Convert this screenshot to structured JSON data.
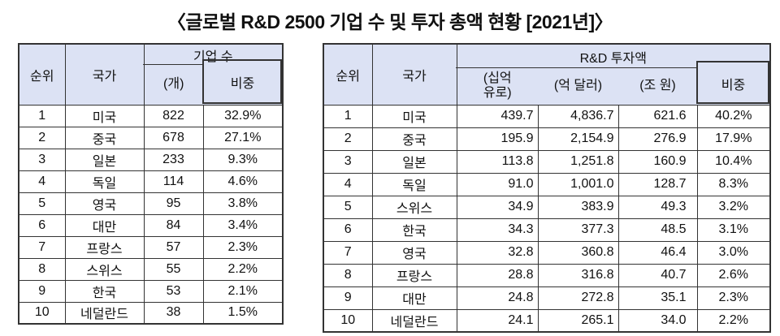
{
  "title": "〈글로벌 R&D 2500 기업 수 및 투자 총액 현황 [2021년]〉",
  "colors": {
    "header_bg": "#dce2f4",
    "border": "#333333",
    "text": "#111111"
  },
  "left_table": {
    "headers": {
      "rank": "순위",
      "country": "국가",
      "group": "기업 수",
      "sub": [
        "(개)",
        "비중"
      ]
    }
  },
  "right_table": {
    "headers": {
      "rank": "순위",
      "country": "국가",
      "group": "R&D 투자액",
      "sub": [
        "(십억\n유로)",
        "(억 달러)",
        "(조 원)",
        "비중"
      ]
    }
  },
  "chart_data": [
    {
      "type": "table",
      "title": "글로벌 R&D 2500 기업 수 (2021년)",
      "columns": [
        "순위",
        "국가",
        "기업 수 (개)",
        "기업 수 비중"
      ],
      "rows": [
        [
          "1",
          "미국",
          "822",
          "32.9%"
        ],
        [
          "2",
          "중국",
          "678",
          "27.1%"
        ],
        [
          "3",
          "일본",
          "233",
          "9.3%"
        ],
        [
          "4",
          "독일",
          "114",
          "4.6%"
        ],
        [
          "5",
          "영국",
          "95",
          "3.8%"
        ],
        [
          "6",
          "대만",
          "84",
          "3.4%"
        ],
        [
          "7",
          "프랑스",
          "57",
          "2.3%"
        ],
        [
          "8",
          "스위스",
          "55",
          "2.2%"
        ],
        [
          "9",
          "한국",
          "53",
          "2.1%"
        ],
        [
          "10",
          "네덜란드",
          "38",
          "1.5%"
        ]
      ]
    },
    {
      "type": "table",
      "title": "글로벌 R&D 2500 투자 총액 (2021년)",
      "columns": [
        "순위",
        "국가",
        "R&D 투자액 (십억 유로)",
        "R&D 투자액 (억 달러)",
        "R&D 투자액 (조 원)",
        "비중"
      ],
      "rows": [
        [
          "1",
          "미국",
          "439.7",
          "4,836.7",
          "621.6",
          "40.2%"
        ],
        [
          "2",
          "중국",
          "195.9",
          "2,154.9",
          "276.9",
          "17.9%"
        ],
        [
          "3",
          "일본",
          "113.8",
          "1,251.8",
          "160.9",
          "10.4%"
        ],
        [
          "4",
          "독일",
          "91.0",
          "1,001.0",
          "128.7",
          "8.3%"
        ],
        [
          "5",
          "스위스",
          "34.9",
          "383.9",
          "49.3",
          "3.2%"
        ],
        [
          "6",
          "한국",
          "34.3",
          "377.3",
          "48.5",
          "3.1%"
        ],
        [
          "7",
          "영국",
          "32.8",
          "360.8",
          "46.4",
          "3.0%"
        ],
        [
          "8",
          "프랑스",
          "28.8",
          "316.8",
          "40.7",
          "2.6%"
        ],
        [
          "9",
          "대만",
          "24.8",
          "272.8",
          "35.1",
          "2.3%"
        ],
        [
          "10",
          "네덜란드",
          "24.1",
          "265.1",
          "34.0",
          "2.2%"
        ]
      ]
    }
  ]
}
